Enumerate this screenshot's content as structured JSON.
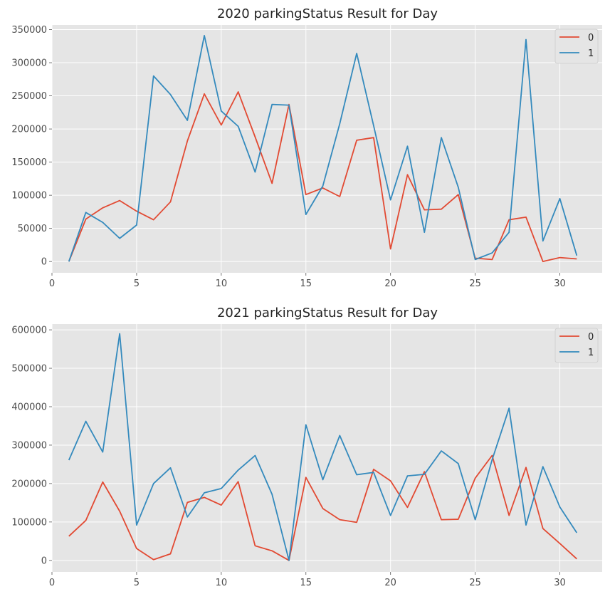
{
  "chart_data": [
    {
      "type": "line",
      "title": "2020 parkingStatus Result for Day",
      "xlabel": "",
      "ylabel": "",
      "xlim": [
        0,
        32.5
      ],
      "ylim": [
        -17000,
        357000
      ],
      "xticks": [
        0,
        5,
        10,
        15,
        20,
        25,
        30
      ],
      "yticks": [
        0,
        50000,
        100000,
        150000,
        200000,
        250000,
        300000,
        350000
      ],
      "grid": true,
      "legend": "top-right",
      "x": [
        1,
        2,
        3,
        4,
        5,
        6,
        7,
        8,
        9,
        10,
        11,
        12,
        13,
        14,
        15,
        16,
        17,
        18,
        19,
        20,
        21,
        22,
        23,
        24,
        25,
        26,
        27,
        28,
        29,
        30,
        31
      ],
      "series": [
        {
          "name": "0",
          "color": "#E24A33",
          "values": [
            0,
            64000,
            81000,
            92000,
            76000,
            63000,
            90000,
            182000,
            253000,
            206000,
            256000,
            188000,
            118000,
            237000,
            101000,
            111000,
            98000,
            183000,
            187000,
            19000,
            131000,
            78000,
            79000,
            101000,
            5000,
            3000,
            63000,
            67000,
            0,
            6000,
            4000
          ]
        },
        {
          "name": "1",
          "color": "#348ABD",
          "values": [
            0,
            74000,
            59000,
            35000,
            55000,
            280000,
            252000,
            213000,
            341000,
            227000,
            204000,
            135000,
            237000,
            236000,
            71000,
            114000,
            208000,
            314000,
            205000,
            93000,
            174000,
            44000,
            187000,
            112000,
            3000,
            13000,
            44000,
            335000,
            31000,
            95000,
            9000
          ]
        }
      ]
    },
    {
      "type": "line",
      "title": "2021 parkingStatus Result for Day",
      "xlabel": "",
      "ylabel": "",
      "xlim": [
        0,
        32.5
      ],
      "ylim": [
        -30000,
        615000
      ],
      "xticks": [
        0,
        5,
        10,
        15,
        20,
        25,
        30
      ],
      "yticks": [
        0,
        100000,
        200000,
        300000,
        400000,
        500000,
        600000
      ],
      "grid": true,
      "legend": "top-right",
      "x": [
        1,
        2,
        3,
        4,
        5,
        6,
        7,
        8,
        9,
        10,
        11,
        12,
        13,
        14,
        15,
        16,
        17,
        18,
        19,
        20,
        21,
        22,
        23,
        24,
        25,
        26,
        27,
        28,
        29,
        30,
        31
      ],
      "series": [
        {
          "name": "0",
          "color": "#E24A33",
          "values": [
            63000,
            104000,
            204000,
            128000,
            31000,
            2000,
            17000,
            151000,
            164000,
            144000,
            205000,
            38000,
            25000,
            0,
            216000,
            135000,
            106000,
            99000,
            237000,
            207000,
            138000,
            231000,
            106000,
            107000,
            214000,
            273000,
            117000,
            242000,
            83000,
            44000,
            4000
          ]
        },
        {
          "name": "1",
          "color": "#348ABD",
          "values": [
            261000,
            362000,
            282000,
            590000,
            92000,
            200000,
            241000,
            113000,
            176000,
            187000,
            235000,
            273000,
            172000,
            0,
            353000,
            210000,
            325000,
            223000,
            229000,
            117000,
            220000,
            224000,
            285000,
            252000,
            106000,
            262000,
            396000,
            92000,
            244000,
            139000,
            72000
          ]
        }
      ]
    }
  ]
}
